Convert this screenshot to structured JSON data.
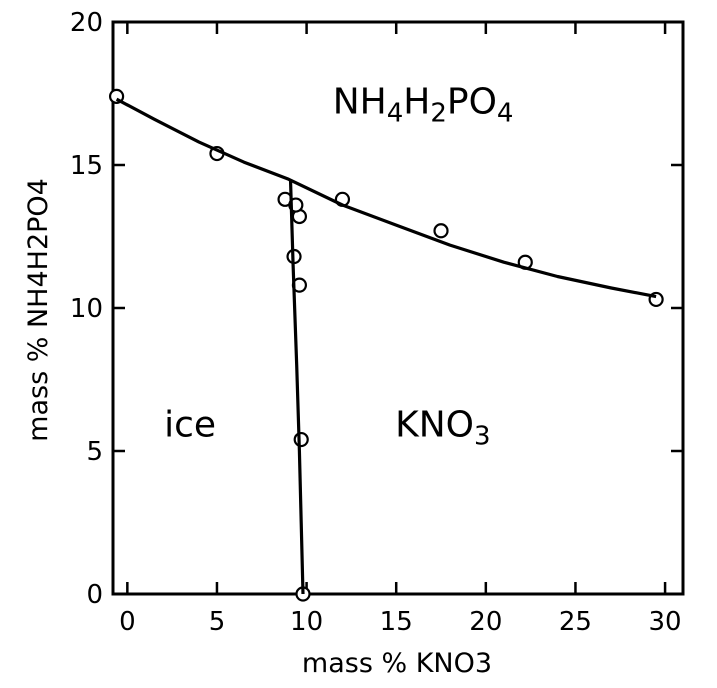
{
  "chart_data": {
    "type": "scatter",
    "title": "",
    "xlabel": "mass % KNO3",
    "ylabel": "mass % NH4H2PO4",
    "xlim": [
      -0.8,
      31
    ],
    "ylim": [
      0,
      20
    ],
    "xticks": [
      0,
      5,
      10,
      15,
      20,
      25,
      30
    ],
    "yticks": [
      0,
      5,
      10,
      15,
      20
    ],
    "xtick_labels": [
      "0",
      "5",
      "10",
      "15",
      "20",
      "25",
      "30"
    ],
    "ytick_labels": [
      "0",
      "5",
      "10",
      "15",
      "20"
    ],
    "grid": false,
    "series": [
      {
        "kind": "points",
        "x": [
          -0.6,
          5.0,
          8.8,
          9.6,
          12.0,
          17.5,
          22.2,
          29.5,
          9.3,
          9.6,
          9.4,
          9.7,
          9.8
        ],
        "y": [
          17.4,
          15.4,
          13.8,
          13.2,
          13.8,
          12.7,
          11.6,
          10.3,
          11.8,
          10.8,
          13.6,
          5.4,
          0.0
        ]
      },
      {
        "kind": "line",
        "x": [
          -0.6,
          1.5,
          4.0,
          6.5,
          9.0,
          12.0,
          15.0,
          18.0,
          21.0,
          24.0,
          27.0,
          29.5
        ],
        "y": [
          17.3,
          16.6,
          15.8,
          15.1,
          14.5,
          13.6,
          12.9,
          12.2,
          11.6,
          11.1,
          10.7,
          10.4
        ]
      },
      {
        "kind": "line",
        "x": [
          9.1,
          9.25,
          9.45,
          9.6,
          9.7,
          9.8
        ],
        "y": [
          14.5,
          11.5,
          8.0,
          5.0,
          2.5,
          0.0
        ]
      }
    ],
    "annotations": [
      {
        "x": 3.5,
        "y": 5.5,
        "parts": [
          {
            "t": "ice",
            "sub": false
          }
        ]
      },
      {
        "x": 17.6,
        "y": 5.5,
        "parts": [
          {
            "t": "KNO",
            "sub": false
          },
          {
            "t": "3",
            "sub": true
          }
        ]
      },
      {
        "x": 16.5,
        "y": 16.8,
        "parts": [
          {
            "t": "NH",
            "sub": false
          },
          {
            "t": "4",
            "sub": true
          },
          {
            "t": "H",
            "sub": false
          },
          {
            "t": "2",
            "sub": true
          },
          {
            "t": "PO",
            "sub": false
          },
          {
            "t": "4",
            "sub": true
          }
        ]
      }
    ]
  }
}
